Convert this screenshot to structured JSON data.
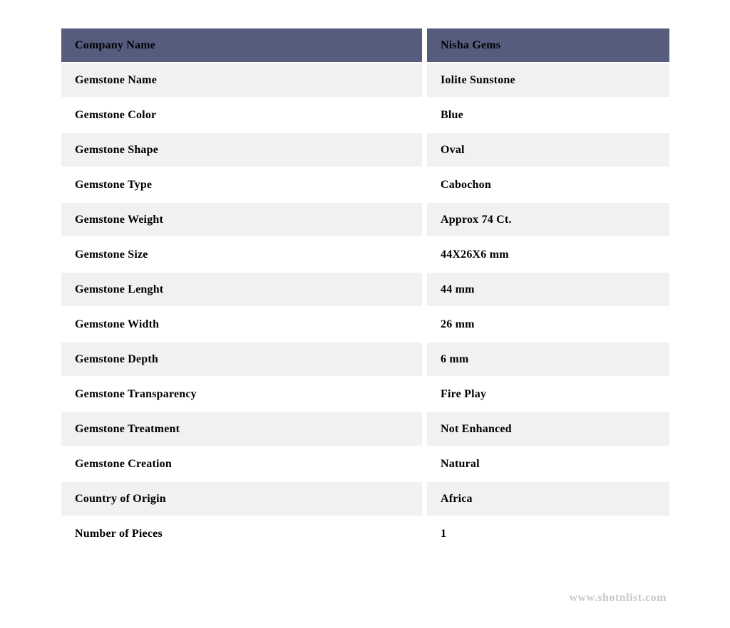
{
  "table": {
    "header": {
      "label": "Company Name",
      "value": "Nisha Gems"
    },
    "rows": [
      {
        "label": "Gemstone Name",
        "value": "Iolite Sunstone"
      },
      {
        "label": "Gemstone Color",
        "value": "Blue"
      },
      {
        "label": "Gemstone Shape",
        "value": "Oval"
      },
      {
        "label": "Gemstone Type",
        "value": "Cabochon"
      },
      {
        "label": "Gemstone Weight",
        "value": "Approx 74 Ct."
      },
      {
        "label": "Gemstone Size",
        "value": "44X26X6 mm"
      },
      {
        "label": "Gemstone Lenght",
        "value": "44 mm"
      },
      {
        "label": "Gemstone Width",
        "value": "26 mm"
      },
      {
        "label": "Gemstone Depth",
        "value": "6 mm"
      },
      {
        "label": "Gemstone Transparency",
        "value": "Fire Play"
      },
      {
        "label": "Gemstone Treatment",
        "value": "Not Enhanced"
      },
      {
        "label": "Gemstone Creation",
        "value": "Natural"
      },
      {
        "label": "Country of Origin",
        "value": "Africa"
      },
      {
        "label": "Number of Pieces",
        "value": "1"
      }
    ]
  },
  "watermark": "www.shotnlist.com",
  "colors": {
    "header_bg": "#555c7e",
    "row_alt_bg": "#f1f1f2",
    "row_bg": "#ffffff",
    "text": "#000000",
    "watermark": "#c9c9c9"
  }
}
